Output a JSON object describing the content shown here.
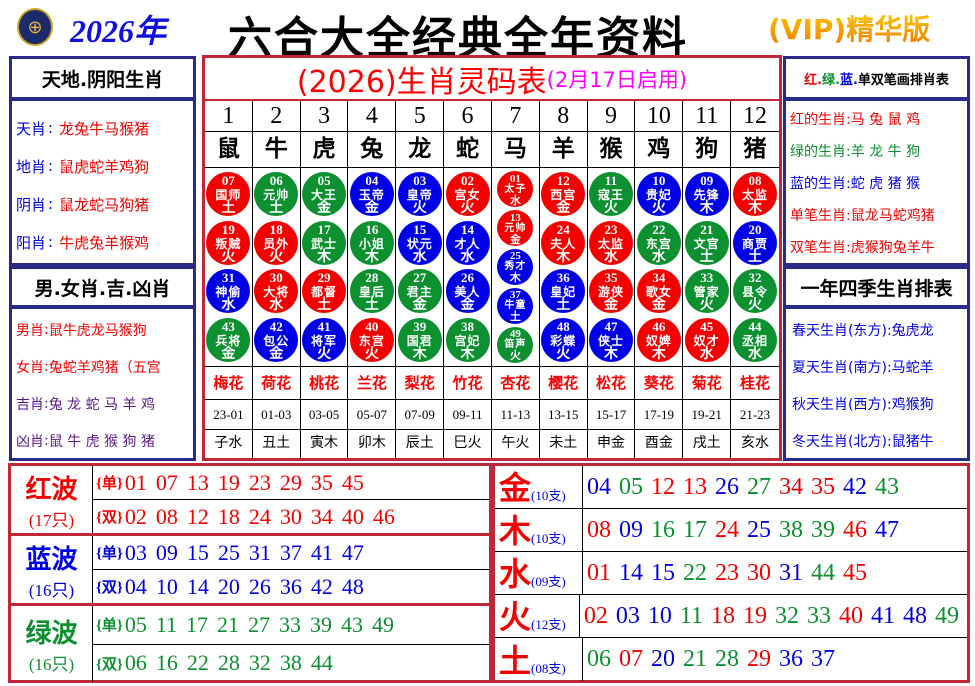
{
  "header": {
    "logo": "logo-emblem",
    "year": "2026年",
    "title": "六合大全经典全年资料",
    "edition": "(VIP)精华版"
  },
  "colors": {
    "red": "#f40000",
    "green": "#0c9030",
    "blue": "#0000e8",
    "border_red": "#c0283a",
    "border_navy": "#2a2a8a"
  },
  "left": {
    "box1_title": "天地.阴阳生肖",
    "box1_items": [
      {
        "label": "天肖",
        "sep": ":",
        "value": "龙兔牛马猴猪"
      },
      {
        "label": "地肖",
        "sep": ":",
        "value": "鼠虎蛇羊鸡狗"
      },
      {
        "label": "阴肖",
        "sep": ":",
        "value": "鼠龙蛇马狗猪"
      },
      {
        "label": "阳肖",
        "sep": ":",
        "value": "牛虎兔羊猴鸡"
      }
    ],
    "box2_title": "男.女肖.吉.凶肖",
    "box2_items": [
      {
        "label": "男肖",
        "sep": ":",
        "value": "鼠牛虎龙马猴狗"
      },
      {
        "label": "女肖",
        "sep": ":",
        "value": "兔蛇羊鸡猪（五宫"
      },
      {
        "label": "吉肖",
        "sep": ":",
        "value": "兔 龙 蛇 马 羊 鸡"
      },
      {
        "label": "凶肖",
        "sep": ":",
        "value": "鼠 牛 虎 猴 狗 猪"
      }
    ]
  },
  "center": {
    "title": "(2026)生肖灵码表",
    "subtitle": "(2月17日启用)",
    "numbers": [
      "1",
      "2",
      "3",
      "4",
      "5",
      "6",
      "7",
      "8",
      "9",
      "10",
      "11",
      "12"
    ],
    "zodiacs": [
      "鼠",
      "牛",
      "虎",
      "兔",
      "龙",
      "蛇",
      "马",
      "羊",
      "猴",
      "鸡",
      "狗",
      "猪"
    ],
    "balls": [
      [
        [
          "07",
          "国师",
          "土"
        ],
        [
          "19",
          "叛贼",
          "火"
        ],
        [
          "31",
          "神偷",
          "水"
        ],
        [
          "43",
          "兵将",
          "金"
        ]
      ],
      [
        [
          "06",
          "元帅",
          "土"
        ],
        [
          "18",
          "员外",
          "火"
        ],
        [
          "30",
          "大将",
          "水"
        ],
        [
          "42",
          "包公",
          "金"
        ]
      ],
      [
        [
          "05",
          "大王",
          "金"
        ],
        [
          "17",
          "武士",
          "木"
        ],
        [
          "29",
          "都督",
          "土"
        ],
        [
          "41",
          "将军",
          "火"
        ]
      ],
      [
        [
          "04",
          "玉帝",
          "金"
        ],
        [
          "16",
          "小姐",
          "木"
        ],
        [
          "28",
          "皇后",
          "土"
        ],
        [
          "40",
          "东宫",
          "火"
        ]
      ],
      [
        [
          "03",
          "皇帝",
          "火"
        ],
        [
          "15",
          "状元",
          "水"
        ],
        [
          "27",
          "君主",
          "金"
        ],
        [
          "39",
          "国君",
          "木"
        ]
      ],
      [
        [
          "02",
          "宫女",
          "火"
        ],
        [
          "14",
          "才人",
          "水"
        ],
        [
          "26",
          "美人",
          "金"
        ],
        [
          "38",
          "宫妃",
          "木"
        ]
      ],
      [
        [
          "01",
          "太子",
          "水"
        ],
        [
          "13",
          "元帅",
          "金"
        ],
        [
          "25",
          "秀才",
          "木"
        ],
        [
          "37",
          "牛童",
          "土"
        ],
        [
          "49",
          "笛声",
          "火"
        ]
      ],
      [
        [
          "12",
          "西宫",
          "金"
        ],
        [
          "24",
          "夫人",
          "木"
        ],
        [
          "36",
          "皇妃",
          "土"
        ],
        [
          "48",
          "彩蝶",
          "火"
        ]
      ],
      [
        [
          "11",
          "寇王",
          "火"
        ],
        [
          "23",
          "太监",
          "水"
        ],
        [
          "35",
          "游侠",
          "金"
        ],
        [
          "47",
          "侠士",
          "木"
        ]
      ],
      [
        [
          "10",
          "贵妃",
          "火"
        ],
        [
          "22",
          "东宫",
          "水"
        ],
        [
          "34",
          "歌女",
          "金"
        ],
        [
          "46",
          "奴婢",
          "木"
        ]
      ],
      [
        [
          "09",
          "先锋",
          "木"
        ],
        [
          "21",
          "文官",
          "土"
        ],
        [
          "33",
          "管家",
          "火"
        ],
        [
          "45",
          "奴才",
          "水"
        ]
      ],
      [
        [
          "08",
          "太监",
          "木"
        ],
        [
          "20",
          "商贾",
          "土"
        ],
        [
          "32",
          "县令",
          "火"
        ],
        [
          "44",
          "丞相",
          "水"
        ]
      ]
    ],
    "flowers": [
      "梅花",
      "荷花",
      "桃花",
      "兰花",
      "梨花",
      "竹花",
      "杏花",
      "樱花",
      "松花",
      "葵花",
      "菊花",
      "桂花"
    ],
    "times": [
      "23-01",
      "01-03",
      "03-05",
      "05-07",
      "07-09",
      "09-11",
      "11-13",
      "13-15",
      "15-17",
      "17-19",
      "19-21",
      "21-23"
    ],
    "branches": [
      "子水",
      "丑土",
      "寅木",
      "卯木",
      "辰土",
      "巳火",
      "午火",
      "未土",
      "申金",
      "酉金",
      "戌土",
      "亥水"
    ]
  },
  "right": {
    "box1_title_parts": [
      {
        "t": "红.",
        "c": "red"
      },
      {
        "t": "绿.",
        "c": "green"
      },
      {
        "t": "蓝.",
        "c": "blue"
      },
      {
        "t": "单双笔画排肖表",
        "c": "black"
      }
    ],
    "box1_items": [
      {
        "label": "红的生肖:",
        "value": "马 兔 鼠 鸡",
        "c": "red"
      },
      {
        "label": "绿的生肖:",
        "value": "羊 龙 牛 狗",
        "c": "green"
      },
      {
        "label": "蓝的生肖:",
        "value": "蛇 虎 猪 猴",
        "c": "blue"
      },
      {
        "label": "单笔生肖:",
        "value": "鼠龙马蛇鸡猪",
        "c": "red"
      },
      {
        "label": "双笔生肖:",
        "value": "虎猴狗兔羊牛",
        "c": "red"
      }
    ],
    "box2_title": "一年四季生肖排表",
    "box2_items": [
      {
        "label": "春天生肖(东方)",
        "value": ":兔虎龙"
      },
      {
        "label": "夏天生肖(南方)",
        "value": ":马蛇羊"
      },
      {
        "label": "秋天生肖(西方)",
        "value": ":鸡猴狗"
      },
      {
        "label": "冬天生肖(北方)",
        "value": ":鼠猪牛"
      }
    ]
  },
  "waves": [
    {
      "name": "红波",
      "count": "(17只)",
      "color": "red",
      "odd_label": "{单}",
      "even_label": "{双}",
      "odd": [
        "01",
        "07",
        "13",
        "19",
        "23",
        "29",
        "35",
        "45"
      ],
      "even": [
        "02",
        "08",
        "12",
        "18",
        "24",
        "30",
        "34",
        "40",
        "46"
      ]
    },
    {
      "name": "蓝波",
      "count": "(16只)",
      "color": "blue",
      "odd_label": "{单}",
      "even_label": "{双}",
      "odd": [
        "03",
        "09",
        "15",
        "25",
        "31",
        "37",
        "41",
        "47"
      ],
      "even": [
        "04",
        "10",
        "14",
        "20",
        "26",
        "36",
        "42",
        "48"
      ]
    },
    {
      "name": "绿波",
      "count": "(16只)",
      "color": "green",
      "odd_label": "{单}",
      "even_label": "{双}",
      "odd": [
        "05",
        "11",
        "17",
        "21",
        "27",
        "33",
        "39",
        "43",
        "49"
      ],
      "even": [
        "06",
        "16",
        "22",
        "28",
        "32",
        "38",
        "44"
      ]
    }
  ],
  "elements": [
    {
      "name": "金",
      "count": "(10支)",
      "numbers": [
        "04",
        "05",
        "12",
        "13",
        "26",
        "27",
        "34",
        "35",
        "42",
        "43"
      ]
    },
    {
      "name": "木",
      "count": "(10支)",
      "numbers": [
        "08",
        "09",
        "16",
        "17",
        "24",
        "25",
        "38",
        "39",
        "46",
        "47"
      ]
    },
    {
      "name": "水",
      "count": "(09支)",
      "numbers": [
        "01",
        "14",
        "15",
        "22",
        "23",
        "30",
        "31",
        "44",
        "45"
      ]
    },
    {
      "name": "火",
      "count": "(12支)",
      "numbers": [
        "02",
        "03",
        "10",
        "11",
        "18",
        "19",
        "32",
        "33",
        "40",
        "41",
        "48",
        "49"
      ]
    },
    {
      "name": "土",
      "count": "(08支)",
      "numbers": [
        "06",
        "07",
        "20",
        "21",
        "28",
        "29",
        "36",
        "37"
      ]
    }
  ]
}
